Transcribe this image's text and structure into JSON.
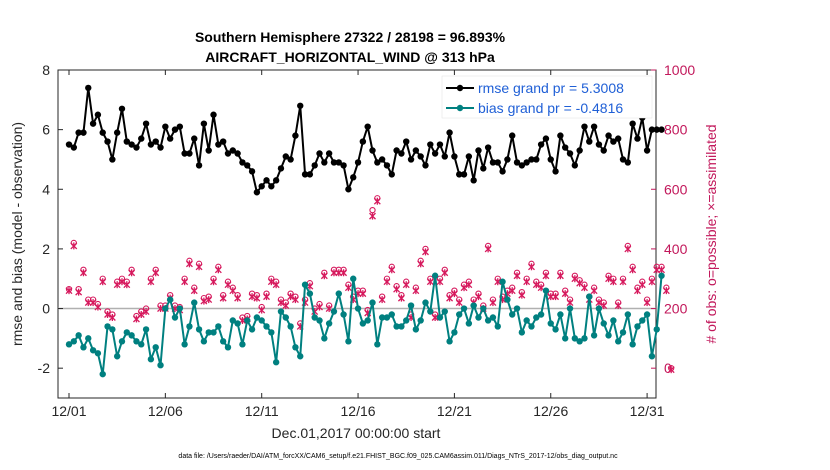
{
  "chart_data": {
    "type": "line",
    "title": "Southern Hemisphere 27322 / 28198 = 96.893%",
    "subtitle": "AIRCRAFT_HORIZONTAL_WIND @ 313 hPa",
    "xlabel": "Dec.01,2017 00:00:00 start",
    "ylabel": "rmse and bias (model - observation)",
    "y2label": "# of obs: o=possible; ×=assimilated",
    "footer": "data file: /Users/raeder/DAI/ATM_forcXX/CAM6_setup/f.e21.FHIST_BGC.f09_025.CAM6assim.011/Diags_NTrS_2017-12/obs_diag_output.nc",
    "xlim": [
      0,
      31.5
    ],
    "ylim": [
      -3,
      8
    ],
    "y2lim": [
      -100,
      1000
    ],
    "x_ticks": [
      0,
      5,
      10,
      15,
      20,
      25,
      30
    ],
    "x_tick_labels": [
      "12/01",
      "12/06",
      "12/11",
      "12/16",
      "12/21",
      "12/26",
      "12/31"
    ],
    "y_ticks": [
      -2,
      0,
      2,
      4,
      6,
      8
    ],
    "y_tick_labels": [
      "-2",
      "0",
      "2",
      "4",
      "6",
      "8"
    ],
    "y2_ticks": [
      0,
      200,
      400,
      600,
      800,
      1000
    ],
    "y2_tick_labels": [
      "0",
      "200",
      "400",
      "600",
      "800",
      "1000"
    ],
    "colors": {
      "rmse": "#000000",
      "bias": "#008080",
      "obs": "#d6195d",
      "zero_line": "#b0b0b0",
      "legend_text": "#1f5fd6",
      "right_axis": "#c2185b"
    },
    "series": [
      {
        "name": "rmse grand pr = 5.3008",
        "axis": "left",
        "x_start": 0,
        "x_step": 0.25,
        "values": [
          5.5,
          5.4,
          5.9,
          5.9,
          7.4,
          6.2,
          6.5,
          5.9,
          5.6,
          5.0,
          5.9,
          6.7,
          5.6,
          5.5,
          5.4,
          5.7,
          6.2,
          5.5,
          5.6,
          5.4,
          6.1,
          5.7,
          6.0,
          6.1,
          5.2,
          5.2,
          5.7,
          4.8,
          6.2,
          5.3,
          6.5,
          5.5,
          5.6,
          5.2,
          5.3,
          5.2,
          4.9,
          4.8,
          4.6,
          3.9,
          4.1,
          4.3,
          4.1,
          4.3,
          4.7,
          5.1,
          5.0,
          5.8,
          6.8,
          4.5,
          4.5,
          4.8,
          5.2,
          4.9,
          5.2,
          4.9,
          4.9,
          4.8,
          4.0,
          4.4,
          4.9,
          5.6,
          6.1,
          5.3,
          4.9,
          5.0,
          4.8,
          4.5,
          5.3,
          5.2,
          5.6,
          5.0,
          5.3,
          5.1,
          4.8,
          5.5,
          5.2,
          5.5,
          5.1,
          5.9,
          5.1,
          4.5,
          4.5,
          5.1,
          4.3,
          5.3,
          4.7,
          5.4,
          4.9,
          4.9,
          4.6,
          5.0,
          5.8,
          4.9,
          4.8,
          4.9,
          5.0,
          5.0,
          5.5,
          5.7,
          5.0,
          4.6,
          5.8,
          5.4,
          5.2,
          4.8,
          5.3,
          6.1,
          5.6,
          6.1,
          5.5,
          5.3,
          5.8,
          5.6,
          5.7,
          5.0,
          4.9,
          6.2,
          5.7,
          6.4,
          5.3,
          6.0,
          6.0,
          6.0
        ]
      },
      {
        "name": "bias grand pr = -0.4816",
        "axis": "left",
        "x_start": 0,
        "x_step": 0.25,
        "values": [
          -1.2,
          -1.1,
          -0.9,
          -1.3,
          -1.0,
          -1.4,
          -1.5,
          -2.2,
          -0.6,
          -0.7,
          -1.6,
          -1.1,
          -0.8,
          -0.9,
          -1.1,
          -1.2,
          -0.7,
          -1.7,
          -1.3,
          -1.9,
          0.0,
          0.3,
          -0.3,
          0.0,
          -1.2,
          -0.6,
          0.2,
          -0.7,
          -1.1,
          -0.8,
          -0.8,
          -0.6,
          -1.1,
          -1.3,
          -0.4,
          -0.5,
          -1.2,
          -0.4,
          -0.7,
          -0.3,
          -0.4,
          -0.6,
          -0.8,
          -1.8,
          -0.1,
          -0.3,
          -0.6,
          -1.3,
          -1.6,
          0.8,
          0.5,
          -0.3,
          -0.4,
          -1.0,
          -0.5,
          -0.1,
          0.5,
          -0.2,
          -1.1,
          1.0,
          0.0,
          -0.5,
          -0.4,
          0.2,
          -1.2,
          -0.3,
          -0.3,
          -0.2,
          -0.6,
          -0.6,
          -0.4,
          0.1,
          -0.7,
          -0.4,
          0.2,
          -0.1,
          1.1,
          -0.3,
          -0.1,
          -1.1,
          -0.8,
          -0.2,
          0.0,
          -0.5,
          0.1,
          -0.3,
          0.0,
          -0.4,
          -0.3,
          -0.6,
          0.9,
          0.3,
          -0.2,
          0.0,
          -0.8,
          -0.4,
          -0.6,
          -0.3,
          -0.2,
          0.6,
          -0.5,
          -0.7,
          -0.2,
          -1.0,
          0.0,
          -1.0,
          -1.1,
          -1.0,
          0.4,
          -0.9,
          0.0,
          -0.5,
          -0.9,
          -0.4,
          -1.1,
          -0.8,
          -0.2,
          -1.2,
          -0.6,
          -0.4,
          -0.2,
          -1.6,
          -0.7,
          1.1
        ]
      },
      {
        "name": "possible obs",
        "axis": "right",
        "marker": "o",
        "x_start": 0,
        "x_step": 0.25,
        "values": [
          265,
          420,
          265,
          330,
          230,
          230,
          215,
          300,
          190,
          180,
          290,
          300,
          290,
          330,
          175,
          190,
          200,
          300,
          330,
          210,
          210,
          245,
          210,
          205,
          300,
          360,
          270,
          350,
          235,
          240,
          300,
          340,
          245,
          290,
          270,
          245,
          170,
          175,
          250,
          245,
          205,
          250,
          300,
          290,
          230,
          220,
          250,
          240,
          150,
          230,
          285,
          200,
          215,
          320,
          210,
          330,
          330,
          330,
          280,
          240,
          260,
          260,
          195,
          530,
          570,
          240,
          300,
          340,
          275,
          245,
          290,
          180,
          270,
          360,
          400,
          300,
          180,
          300,
          330,
          245,
          260,
          230,
          280,
          290,
          230,
          250,
          210,
          410,
          230,
          300,
          240,
          260,
          270,
          320,
          255,
          300,
          350,
          290,
          280,
          320,
          250,
          250,
          320,
          260,
          230,
          310,
          295,
          280,
          240,
          270,
          230,
          220,
          310,
          300,
          220,
          300,
          410,
          340,
          270,
          290,
          230,
          300,
          340,
          340,
          270,
          0
        ]
      },
      {
        "name": "assimilated obs",
        "axis": "right",
        "marker": "x",
        "x_start": 0,
        "x_step": 0.25,
        "values": [
          260,
          410,
          255,
          320,
          220,
          220,
          205,
          290,
          180,
          170,
          280,
          290,
          280,
          320,
          165,
          180,
          190,
          290,
          320,
          200,
          200,
          235,
          200,
          195,
          290,
          350,
          260,
          340,
          225,
          230,
          290,
          330,
          235,
          280,
          260,
          235,
          160,
          165,
          240,
          235,
          195,
          240,
          290,
          280,
          220,
          210,
          240,
          230,
          140,
          220,
          275,
          190,
          205,
          310,
          200,
          320,
          320,
          320,
          270,
          230,
          250,
          250,
          185,
          510,
          560,
          230,
          290,
          330,
          265,
          235,
          280,
          170,
          260,
          350,
          390,
          290,
          170,
          290,
          320,
          235,
          250,
          220,
          270,
          280,
          220,
          240,
          200,
          400,
          220,
          290,
          230,
          250,
          260,
          310,
          245,
          290,
          340,
          280,
          270,
          310,
          240,
          240,
          310,
          250,
          220,
          300,
          285,
          270,
          230,
          260,
          220,
          210,
          300,
          290,
          210,
          290,
          400,
          330,
          260,
          280,
          220,
          290,
          330,
          330,
          260,
          -5
        ]
      }
    ],
    "legend_placement": "top-right"
  }
}
